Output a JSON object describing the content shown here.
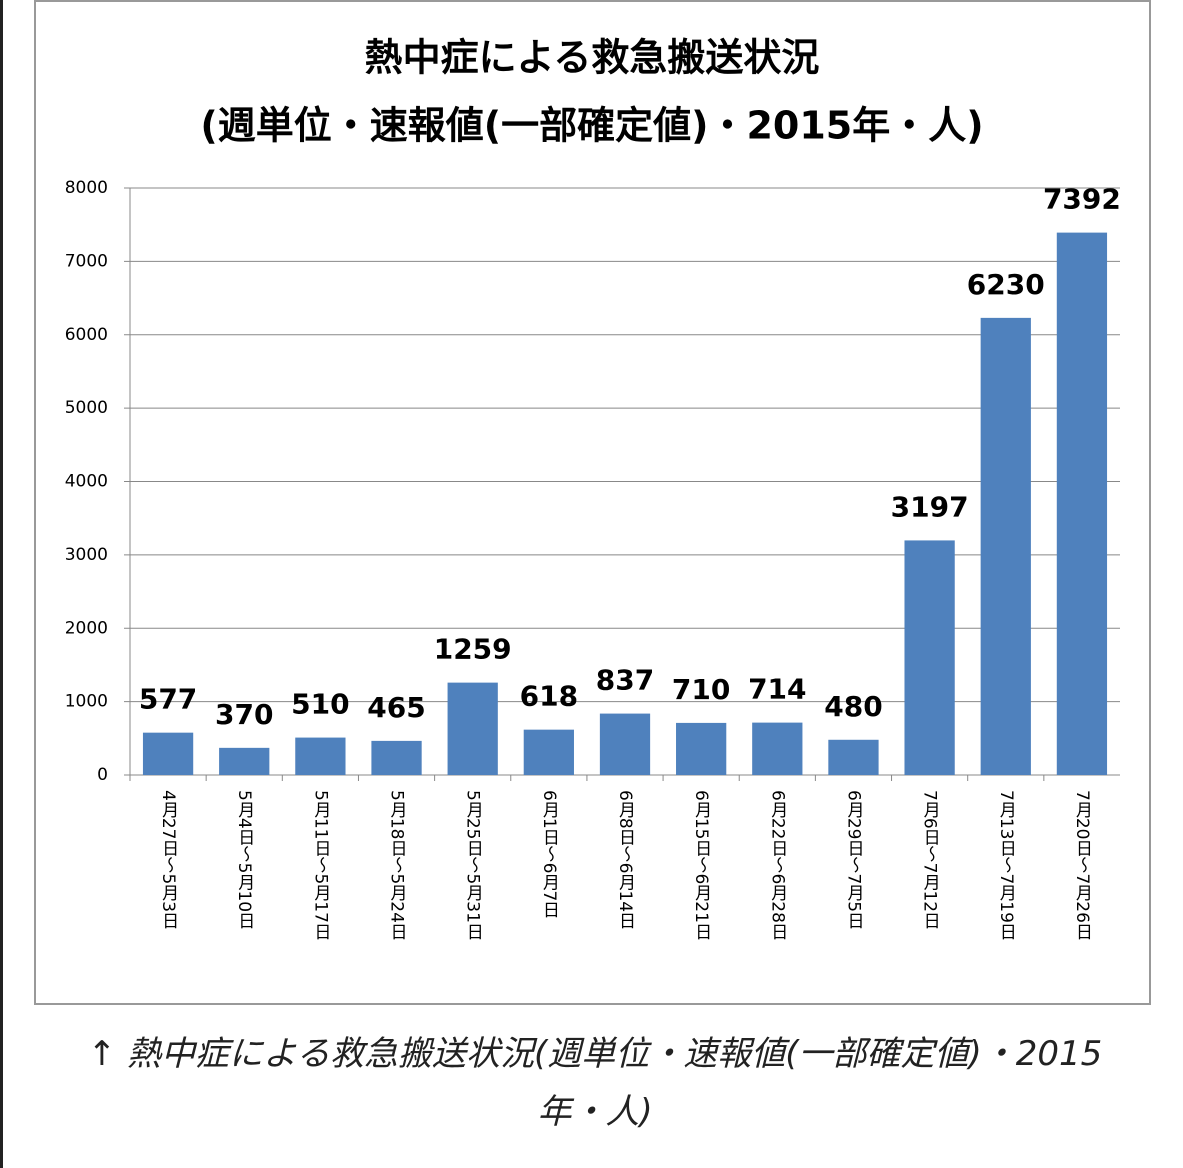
{
  "chart_data": {
    "type": "bar",
    "title": "熱中症による救急搬送状況",
    "subtitle": "(週単位・速報値(一部確定値)・2015年・人)",
    "categories": [
      "4月27日～5月3日",
      "5月4日～5月10日",
      "5月11日～5月17日",
      "5月18日～5月24日",
      "5月25日～5月31日",
      "6月1日～6月7日",
      "6月8日～6月14日",
      "6月15日～6月21日",
      "6月22日～6月28日",
      "6月29日～7月5日",
      "7月6日～7月12日",
      "7月13日～7月19日",
      "7月20日～7月26日"
    ],
    "values": [
      577,
      370,
      510,
      465,
      1259,
      618,
      837,
      710,
      714,
      480,
      3197,
      6230,
      7392
    ],
    "color": "#4f81bd",
    "ylim": [
      0,
      8000
    ],
    "yticks": [
      0,
      1000,
      2000,
      3000,
      4000,
      5000,
      6000,
      7000,
      8000
    ],
    "grid": true
  },
  "caption": "↑ 熱中症による救急搬送状況(週単位・速報値(一部確定値)・2015年・人)"
}
